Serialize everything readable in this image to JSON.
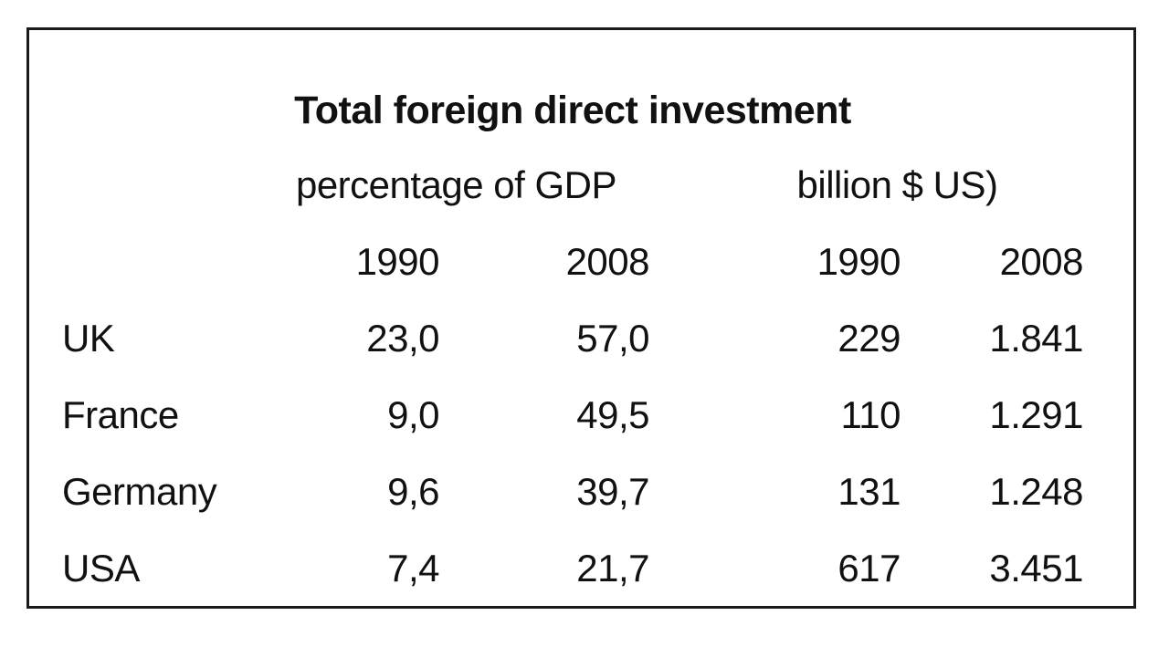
{
  "table": {
    "title": "Total foreign direct investment",
    "group_headers": {
      "percentage_of_gdp": "percentage of GDP",
      "billion_usd": "billion $ US)"
    },
    "year_headers": [
      "1990",
      "2008",
      "1990",
      "2008"
    ],
    "rows": [
      {
        "label": "UK",
        "values": [
          "23,0",
          "57,0",
          "229",
          "1.841"
        ]
      },
      {
        "label": "France",
        "values": [
          "9,0",
          "49,5",
          "110",
          "1.291"
        ]
      },
      {
        "label": "Germany",
        "values": [
          "9,6",
          "39,7",
          "131",
          "1.248"
        ]
      },
      {
        "label": "USA",
        "values": [
          "7,4",
          "21,7",
          "617",
          "3.451"
        ]
      }
    ]
  },
  "chart_data": {
    "type": "table",
    "title": "Total foreign direct investment",
    "column_groups": [
      {
        "label": "percentage of GDP",
        "years": [
          "1990",
          "2008"
        ]
      },
      {
        "label": "billion $ US)",
        "years": [
          "1990",
          "2008"
        ]
      }
    ],
    "columns": [
      "percentage of GDP 1990",
      "percentage of GDP 2008",
      "billion $ US 1990",
      "billion $ US 2008"
    ],
    "categories": [
      "UK",
      "France",
      "Germany",
      "USA"
    ],
    "series": [
      {
        "name": "percentage of GDP 1990",
        "values": [
          23.0,
          9.0,
          9.6,
          7.4
        ]
      },
      {
        "name": "percentage of GDP 2008",
        "values": [
          57.0,
          49.5,
          39.7,
          21.7
        ]
      },
      {
        "name": "billion $ US 1990",
        "values": [
          229,
          110,
          131,
          617
        ]
      },
      {
        "name": "billion $ US 2008",
        "values": [
          1841,
          1291,
          1248,
          3451
        ]
      }
    ],
    "number_format": "European (decimal comma, dot thousands separator)",
    "grid": false,
    "border": "single black rectangle around whole table"
  },
  "colors": {
    "background": "#ffffff",
    "border": "#1a1a1a",
    "text": "#111111"
  }
}
